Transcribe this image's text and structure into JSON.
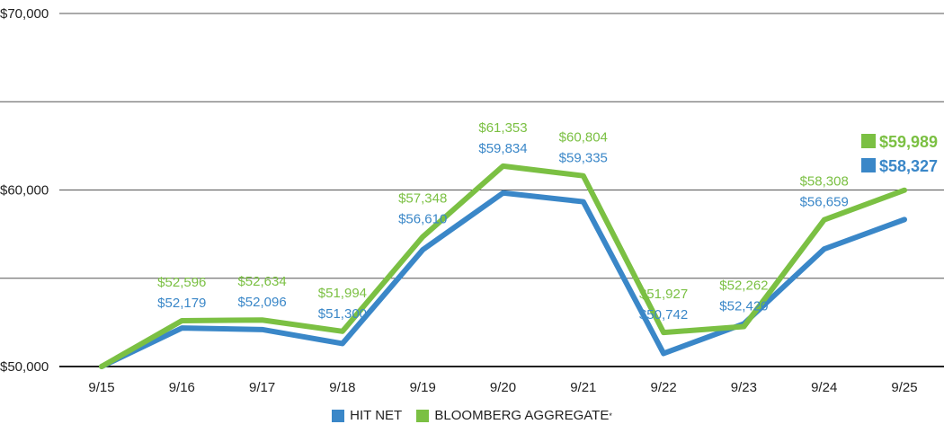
{
  "chart_data": {
    "type": "line",
    "categories": [
      "9/15",
      "9/16",
      "9/17",
      "9/18",
      "9/19",
      "9/20",
      "9/21",
      "9/22",
      "9/23",
      "9/24",
      "9/25"
    ],
    "ylim": [
      50000,
      70000
    ],
    "y_ticks": [
      50000,
      60000,
      70000
    ],
    "y_tick_labels": [
      "$50,000",
      "$60,000",
      "$70,000"
    ],
    "grid": true,
    "legend_position": "bottom-center",
    "series": [
      {
        "name": "HIT NET",
        "color": "#3a87c8",
        "values": [
          50000,
          52179,
          52096,
          51300,
          56610,
          59834,
          59335,
          50742,
          52420,
          56659,
          58327
        ],
        "labels": [
          "",
          "$52,179",
          "$52,096",
          "$51,300",
          "$56,610",
          "$59,834",
          "$59,335",
          "$50,742",
          "$52,420",
          "$56,659",
          ""
        ],
        "end_label": "$58,327"
      },
      {
        "name": "BLOOMBERG AGGREGATE",
        "name_suffix": "*",
        "color": "#7bc043",
        "values": [
          50000,
          52596,
          52634,
          51994,
          57348,
          61353,
          60804,
          51927,
          52262,
          58308,
          59989
        ],
        "labels": [
          "",
          "$52,596",
          "$52,634",
          "$51,994",
          "$57,348",
          "$61,353",
          "$60,804",
          "$51,927",
          "$52,262",
          "$58,308",
          ""
        ],
        "end_label": "$59,989"
      }
    ]
  }
}
